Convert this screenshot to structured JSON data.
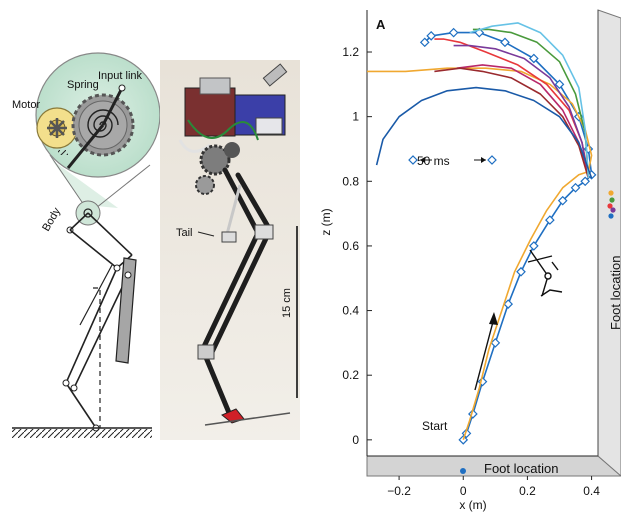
{
  "schematic": {
    "labels": {
      "spring": "Spring",
      "input_link": "Input link",
      "motor": "Motor",
      "body": "Body"
    }
  },
  "photo": {
    "labels": {
      "tail": "Tail",
      "scale_bar": "15 cm"
    }
  },
  "chart_data": {
    "type": "line",
    "panel_label": "A",
    "xlabel": "x (m)",
    "ylabel": "z (m)",
    "xlim": [
      -0.3,
      0.42
    ],
    "ylim": [
      -0.05,
      1.33
    ],
    "x_ticks": [
      -0.2,
      0,
      0.2,
      0.4
    ],
    "y_ticks": [
      0,
      0.2,
      0.4,
      0.6,
      0.8,
      1,
      1.2
    ],
    "x_tick_labels": [
      "−0.2",
      "0",
      "0.2",
      "0.4"
    ],
    "y_tick_labels": [
      "0",
      "0.2",
      "0.4",
      "0.6",
      "0.8",
      "1",
      "1.2"
    ],
    "annotations": {
      "start": "Start",
      "timing": "50 ms",
      "foot_location_floor": "Foot location",
      "foot_location_wall": "Foot location"
    },
    "series": [
      {
        "color": "#1f6fc2",
        "marker": "diamond",
        "x": [
          0,
          0.01,
          0.03,
          0.06,
          0.1,
          0.14,
          0.18,
          0.22,
          0.27,
          0.31,
          0.35,
          0.38,
          0.4,
          0.39,
          0.36,
          0.3,
          0.22,
          0.13,
          0.05,
          -0.03,
          -0.1,
          -0.12
        ],
        "z": [
          0,
          0.02,
          0.08,
          0.18,
          0.3,
          0.42,
          0.52,
          0.6,
          0.68,
          0.74,
          0.78,
          0.8,
          0.82,
          0.9,
          1.0,
          1.1,
          1.18,
          1.23,
          1.26,
          1.26,
          1.25,
          1.23
        ]
      },
      {
        "color": "#f0a830",
        "x": [
          0,
          0.02,
          0.05,
          0.08,
          0.12,
          0.16,
          0.21,
          0.26,
          0.31,
          0.36,
          0.39,
          0.4,
          0.38,
          0.34,
          0.27,
          0.18,
          0.07,
          -0.05,
          -0.18,
          -0.3
        ],
        "z": [
          0,
          0.06,
          0.16,
          0.28,
          0.4,
          0.52,
          0.62,
          0.71,
          0.78,
          0.82,
          0.83,
          0.88,
          0.96,
          1.04,
          1.1,
          1.14,
          1.15,
          1.15,
          1.14,
          1.14
        ]
      },
      {
        "color": "#e8383c",
        "x": [
          0.39,
          0.37,
          0.33,
          0.26,
          0.17,
          0.07,
          -0.01,
          -0.06,
          -0.09
        ],
        "z": [
          0.82,
          0.92,
          1.02,
          1.1,
          1.16,
          1.2,
          1.23,
          1.24,
          1.24
        ]
      },
      {
        "color": "#7a3a9a",
        "x": [
          0.39,
          0.37,
          0.33,
          0.27,
          0.19,
          0.1,
          0.02,
          -0.03
        ],
        "z": [
          0.81,
          0.92,
          1.03,
          1.12,
          1.18,
          1.21,
          1.22,
          1.22
        ]
      },
      {
        "color": "#b8286a",
        "x": [
          0.39,
          0.36,
          0.31,
          0.24,
          0.15,
          0.06,
          -0.02
        ],
        "z": [
          0.81,
          0.92,
          1.02,
          1.1,
          1.15,
          1.16,
          1.15
        ]
      },
      {
        "color": "#9a2a2e",
        "x": [
          0.39,
          0.36,
          0.31,
          0.24,
          0.15,
          0.06,
          -0.01,
          -0.09
        ],
        "z": [
          0.81,
          0.91,
          1.0,
          1.07,
          1.12,
          1.14,
          1.15,
          1.14
        ]
      },
      {
        "color": "#4a9a3c",
        "x": [
          0.39,
          0.38,
          0.35,
          0.3,
          0.23,
          0.15,
          0.08,
          0.03
        ],
        "z": [
          0.81,
          0.95,
          1.07,
          1.17,
          1.23,
          1.26,
          1.27,
          1.27
        ]
      },
      {
        "color": "#66c2e6",
        "x": [
          0.39,
          0.38,
          0.36,
          0.31,
          0.24,
          0.17,
          0.09,
          0.02
        ],
        "z": [
          0.81,
          0.96,
          1.09,
          1.19,
          1.26,
          1.29,
          1.28,
          1.26
        ]
      },
      {
        "color": "#1a5aa8",
        "x": [
          0.4,
          0.36,
          0.3,
          0.22,
          0.13,
          0.04,
          -0.05,
          -0.13,
          -0.2,
          -0.25,
          -0.27
        ],
        "z": [
          0.81,
          0.92,
          1.0,
          1.05,
          1.08,
          1.09,
          1.08,
          1.05,
          1.0,
          0.93,
          0.85
        ]
      }
    ]
  }
}
